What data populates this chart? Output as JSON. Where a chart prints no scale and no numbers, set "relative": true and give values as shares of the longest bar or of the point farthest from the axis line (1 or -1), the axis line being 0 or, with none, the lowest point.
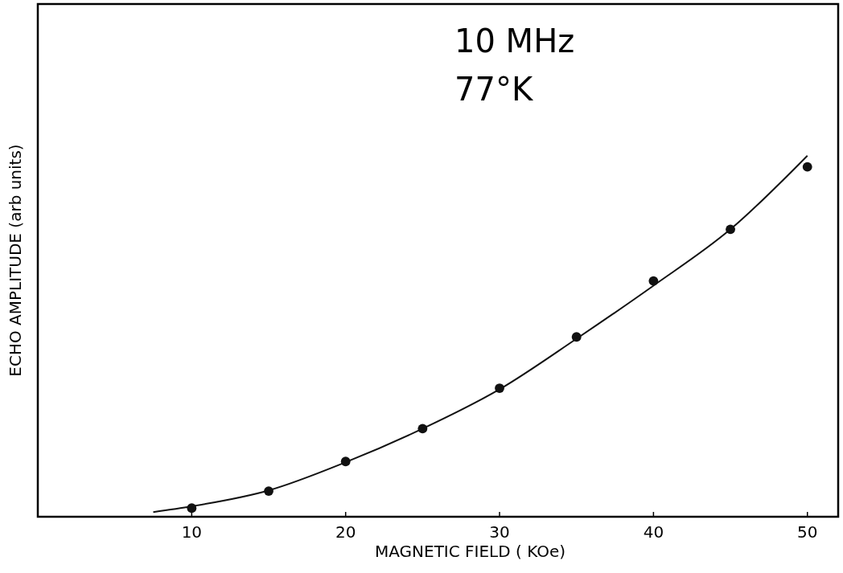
{
  "chart_data": {
    "type": "scatter",
    "relative": true,
    "xlabel": "MAGNETIC FIELD ( KOe)",
    "ylabel": "ECHO AMPLITUDE (arb units)",
    "annotations": [
      "10 MHz",
      "77°K"
    ],
    "xlim": [
      0,
      52
    ],
    "xticks": [
      10,
      20,
      30,
      40,
      50
    ],
    "series": [
      {
        "marker": "circle",
        "color": "#111111",
        "x": [
          10,
          15,
          20,
          25,
          30,
          35,
          40,
          45,
          50
        ],
        "values": [
          0.024,
          0.071,
          0.153,
          0.244,
          0.356,
          0.498,
          0.653,
          0.796,
          0.969
        ]
      },
      {
        "type": "line",
        "color": "#111111",
        "x": [
          7.5,
          10,
          15,
          20,
          25,
          30,
          35,
          40,
          45,
          50
        ],
        "values": [
          0.013,
          0.029,
          0.073,
          0.151,
          0.244,
          0.353,
          0.493,
          0.64,
          0.796,
          1
        ]
      }
    ]
  }
}
